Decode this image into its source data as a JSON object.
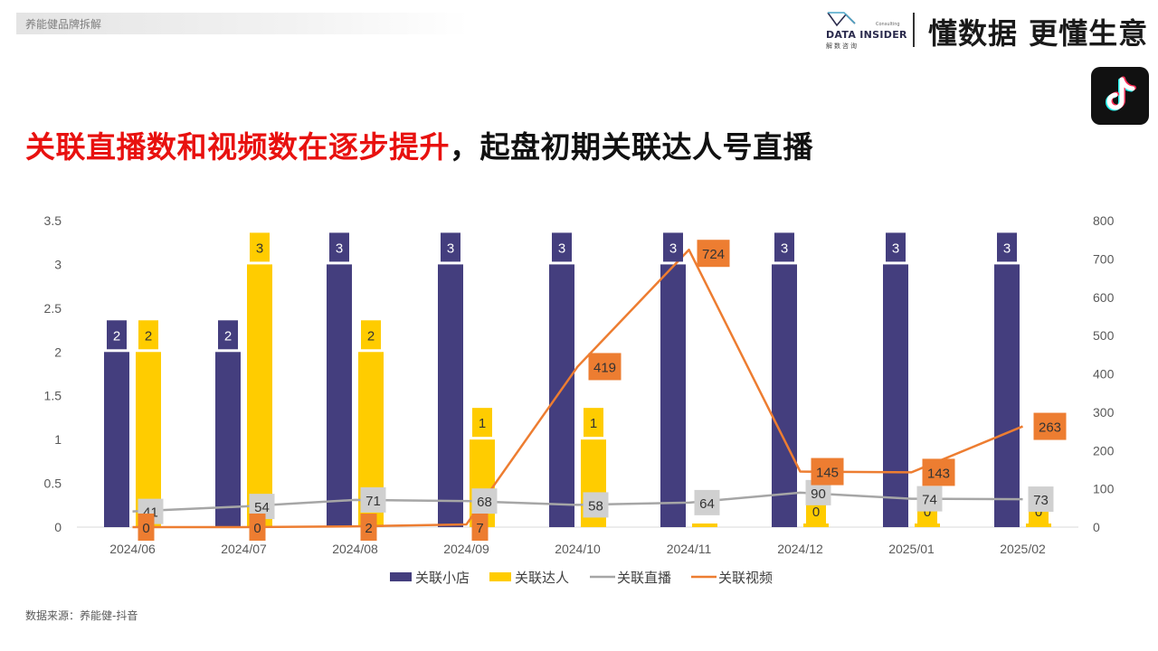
{
  "header": {
    "tag": "养能健品牌拆解",
    "logo_en": "DATA INSIDER",
    "logo_cn": "解数咨询",
    "logo_sub": "Consulting",
    "slogan": "懂数据 更懂生意",
    "app_icon": "tiktok-icon"
  },
  "headline": {
    "red": "关联直播数和视频数在逐步提升",
    "black": "，起盘初期关联达人号直播"
  },
  "source": "数据来源：养能健-抖音",
  "colors": {
    "shop": "#443e7e",
    "influencer": "#ffcc00",
    "live": "#a6a6a6",
    "video": "#ed7d31",
    "headline_red": "#e8110f"
  },
  "chart_data": {
    "type": "bar",
    "categories": [
      "2024/06",
      "2024/07",
      "2024/08",
      "2024/09",
      "2024/10",
      "2024/11",
      "2024/12",
      "2025/01",
      "2025/02"
    ],
    "y_left": {
      "min": 0,
      "max": 3.5,
      "ticks": [
        "0",
        "0.5",
        "1",
        "1.5",
        "2",
        "2.5",
        "3",
        "3.5"
      ]
    },
    "y_right": {
      "min": 0,
      "max": 800,
      "ticks": [
        "0",
        "100",
        "200",
        "300",
        "400",
        "500",
        "600",
        "700",
        "800"
      ]
    },
    "series": [
      {
        "name": "关联小店",
        "type": "bar",
        "axis": "left",
        "values": [
          2,
          2,
          3,
          3,
          3,
          3,
          3,
          3,
          3
        ],
        "labels": [
          "2",
          "2",
          "3",
          "3",
          "3",
          "3",
          "3",
          "3",
          "3"
        ]
      },
      {
        "name": "关联达人",
        "type": "bar",
        "axis": "left",
        "values": [
          2,
          3,
          2,
          1,
          1,
          0,
          0,
          0,
          0
        ],
        "labels": [
          "2",
          "3",
          "2",
          "1",
          "1",
          "",
          "0",
          "0",
          "0"
        ]
      },
      {
        "name": "关联直播",
        "type": "line",
        "axis": "right",
        "values": [
          41,
          54,
          71,
          68,
          58,
          64,
          90,
          74,
          73
        ],
        "labels": [
          "41",
          "54",
          "71",
          "68",
          "58",
          "64",
          "90",
          "74",
          "73"
        ]
      },
      {
        "name": "关联视频",
        "type": "line",
        "axis": "right",
        "values": [
          0,
          0,
          2,
          7,
          419,
          724,
          145,
          143,
          263
        ],
        "labels": [
          "0",
          "0",
          "2",
          "7",
          "419",
          "724",
          "145",
          "143",
          "263"
        ]
      }
    ],
    "grid": false,
    "legend_position": "bottom"
  }
}
